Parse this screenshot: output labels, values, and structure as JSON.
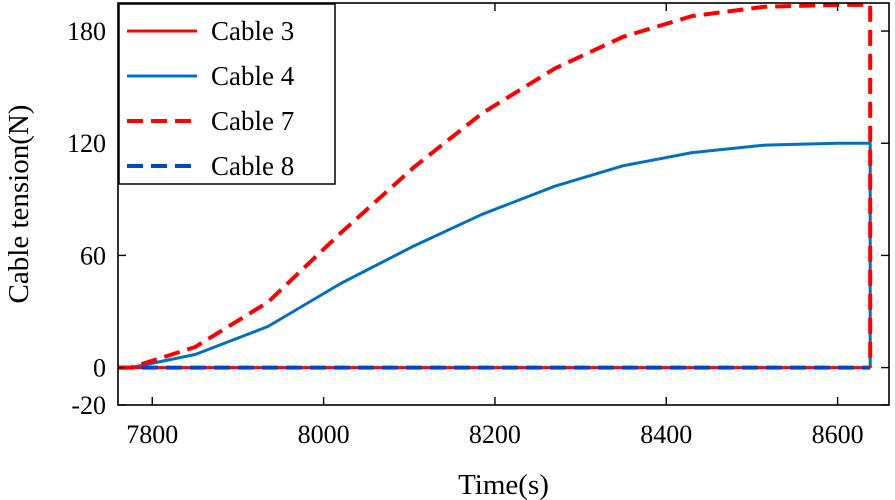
{
  "chart_data": {
    "type": "line",
    "title": "",
    "xlabel": "Time(s)",
    "ylabel": "Cable tension(N)",
    "xlim": [
      7760,
      8660
    ],
    "ylim": [
      -20,
      195
    ],
    "xticks": [
      7800,
      8000,
      8200,
      8400,
      8600
    ],
    "yticks": [
      -20,
      0,
      60,
      120,
      180
    ],
    "grid": false,
    "legend_position": "top-left",
    "series": [
      {
        "name": "Cable 3",
        "color": "#ff0000",
        "dash": "solid",
        "x": [
          7760,
          8638
        ],
        "y": [
          0,
          0
        ]
      },
      {
        "name": "Cable 4",
        "color": "#0072bd",
        "dash": "solid",
        "x": [
          7760,
          7775,
          7850,
          7935,
          8020,
          8105,
          8185,
          8270,
          8350,
          8430,
          8515,
          8600,
          8636,
          8638,
          8638
        ],
        "y": [
          0,
          0,
          7,
          22,
          45,
          65,
          82,
          97,
          108,
          115,
          119,
          120,
          120,
          120,
          0
        ]
      },
      {
        "name": "Cable 7",
        "color": "#ff0000",
        "dash": "dashed",
        "x": [
          7760,
          7775,
          7850,
          7935,
          8020,
          8105,
          8185,
          8270,
          8350,
          8430,
          8515,
          8600,
          8636,
          8638,
          8638
        ],
        "y": [
          0,
          0,
          11,
          35,
          72,
          107,
          136,
          160,
          177,
          188,
          193,
          194,
          194,
          194,
          0
        ]
      },
      {
        "name": "Cable 8",
        "color": "#0046c8",
        "dash": "dashed",
        "x": [
          7760,
          8638
        ],
        "y": [
          0,
          0
        ]
      }
    ]
  }
}
